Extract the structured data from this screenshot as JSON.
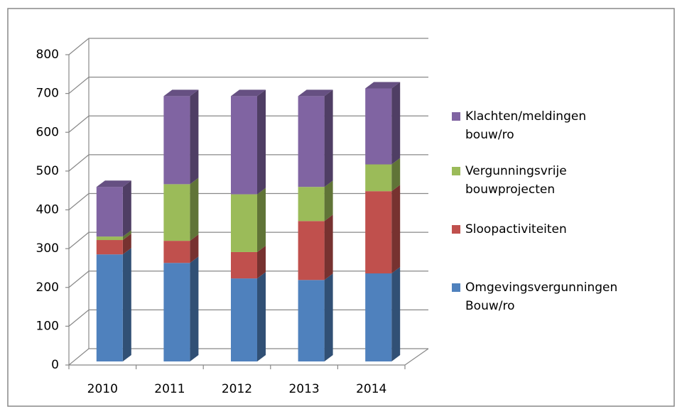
{
  "chart_data": {
    "type": "bar3d_stacked",
    "categories": [
      "2010",
      "2011",
      "2012",
      "2013",
      "2014"
    ],
    "series": [
      {
        "name": "Omgevingsvergunningen Bouw/ro",
        "color": "#4f81bd",
        "values": [
          276,
          254,
          214,
          210,
          227
        ]
      },
      {
        "name": "Sloopactiviteiten",
        "color": "#c0504d",
        "values": [
          37,
          57,
          68,
          152,
          212
        ]
      },
      {
        "name": "Vergunningsvrije bouwprojecten",
        "color": "#9bbb59",
        "values": [
          9,
          146,
          149,
          88,
          69
        ]
      },
      {
        "name": "Klachten/meldingen bouw/ro",
        "color": "#8064a2",
        "values": [
          128,
          227,
          253,
          234,
          196
        ]
      }
    ],
    "ylim": [
      0,
      800
    ],
    "yticks": [
      0,
      100,
      200,
      300,
      400,
      500,
      600,
      700,
      800
    ],
    "grid": true
  }
}
